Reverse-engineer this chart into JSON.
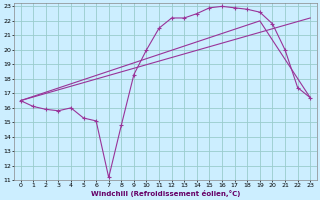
{
  "xlabel": "Windchill (Refroidissement éolien,°C)",
  "background_color": "#cceeff",
  "grid_color": "#99cccc",
  "line_color": "#993399",
  "xlim": [
    -0.5,
    23.5
  ],
  "ylim": [
    11,
    23.2
  ],
  "xticks": [
    0,
    1,
    2,
    3,
    4,
    5,
    6,
    7,
    8,
    9,
    10,
    11,
    12,
    13,
    14,
    15,
    16,
    17,
    18,
    19,
    20,
    21,
    22,
    23
  ],
  "yticks": [
    11,
    12,
    13,
    14,
    15,
    16,
    17,
    18,
    19,
    20,
    21,
    22,
    23
  ],
  "line1_x": [
    0,
    1,
    2,
    3,
    4,
    5,
    6,
    7,
    8,
    9,
    10,
    11,
    12,
    13,
    14,
    15,
    16,
    17,
    18,
    19,
    20,
    21,
    22,
    23
  ],
  "line1_y": [
    16.5,
    16.1,
    15.9,
    15.8,
    16.0,
    15.3,
    15.1,
    11.2,
    14.8,
    18.3,
    20.0,
    21.5,
    22.2,
    22.2,
    22.5,
    22.9,
    23.0,
    22.9,
    22.8,
    22.6,
    21.8,
    20.0,
    17.4,
    16.7
  ],
  "line2_x": [
    0,
    23
  ],
  "line2_y": [
    16.5,
    22.2
  ],
  "line3_x": [
    0,
    19,
    23
  ],
  "line3_y": [
    16.5,
    22.0,
    16.7
  ]
}
